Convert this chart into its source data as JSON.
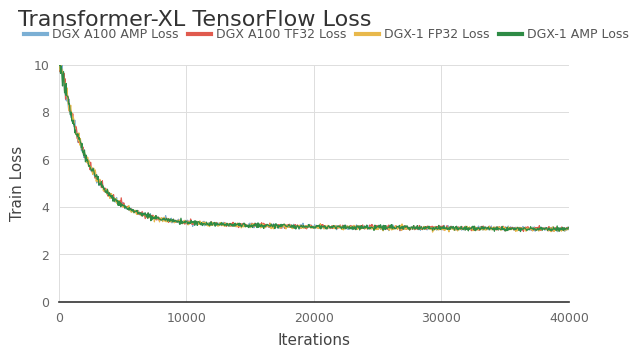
{
  "title": "Transformer-XL TensorFlow Loss",
  "xlabel": "Iterations",
  "ylabel": "Train Loss",
  "xlim": [
    0,
    40000
  ],
  "ylim": [
    0,
    10
  ],
  "yticks": [
    0,
    2,
    4,
    6,
    8,
    10
  ],
  "xticks": [
    0,
    10000,
    20000,
    30000,
    40000
  ],
  "xtick_labels": [
    "0",
    "10000",
    "20000",
    "30000",
    "40000"
  ],
  "series": [
    {
      "label": "DGX A100 AMP Loss",
      "color": "#7bafd4",
      "zorder": 2
    },
    {
      "label": "DGX A100 TF32 Loss",
      "color": "#e05a4e",
      "zorder": 3
    },
    {
      "label": "DGX-1 FP32 Loss",
      "color": "#e8b84b",
      "zorder": 4
    },
    {
      "label": "DGX-1 AMP Loss",
      "color": "#2e8b45",
      "zorder": 5
    }
  ],
  "background_color": "#ffffff",
  "grid_color": "#dddddd",
  "title_fontsize": 16,
  "label_fontsize": 11,
  "legend_fontsize": 9,
  "tick_fontsize": 9,
  "line_width": 0.9,
  "noise_scale": 0.045,
  "seed": 42,
  "asymptote": 3.02,
  "decay1": 2200,
  "decay2": 18000,
  "coef1": 6.95,
  "coef2": 0.45
}
